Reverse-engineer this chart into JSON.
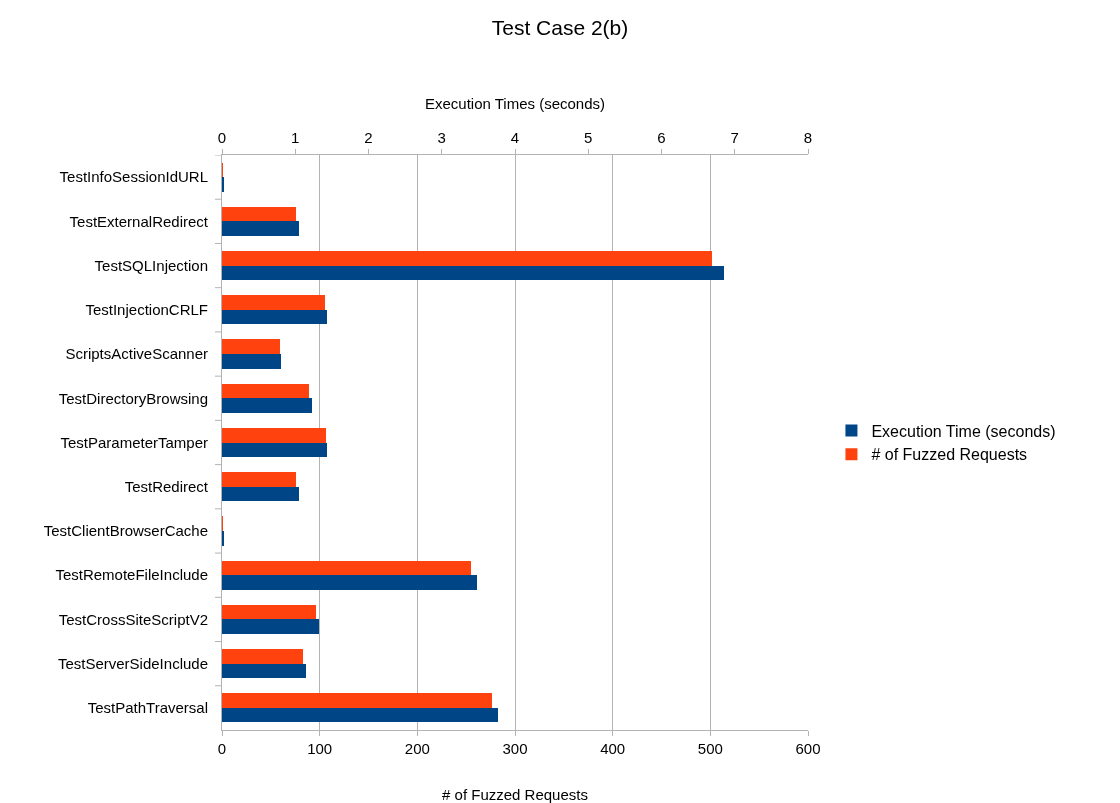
{
  "chart_data": {
    "type": "bar",
    "orientation": "horizontal",
    "title": "Test Case 2(b)",
    "xlabel": "# of Fuzzed Requests",
    "x2label": "Execution Times (seconds)",
    "categories": [
      "TestInfoSessionIdURL",
      "TestExternalRedirect",
      "TestSQLInjection",
      "TestInjectionCRLF",
      "ScriptsActiveScanner",
      "TestDirectoryBrowsing",
      "TestParameterTamper",
      "TestRedirect",
      "TestClientBrowserCache",
      "TestRemoteFileInclude",
      "TestCrossSiteScriptV2",
      "TestServerSideInclude",
      "TestPathTraversal"
    ],
    "series": [
      {
        "name": "Execution Time (seconds)",
        "color": "#004586",
        "axis": "x2",
        "values": [
          0.02,
          1.05,
          6.85,
          1.43,
          0.8,
          1.23,
          1.44,
          1.05,
          0.02,
          3.48,
          1.32,
          1.14,
          3.77
        ]
      },
      {
        "name": "# of Fuzzed Requests",
        "color": "#ff420e",
        "values": [
          1,
          76,
          502,
          105,
          59,
          89,
          106,
          76,
          1,
          255,
          96,
          83,
          276
        ]
      }
    ],
    "xlim": [
      0,
      600
    ],
    "xticks": [
      0,
      100,
      200,
      300,
      400,
      500,
      600
    ],
    "x2lim": [
      0,
      8
    ],
    "x2ticks": [
      0,
      1,
      2,
      3,
      4,
      5,
      6,
      7,
      8
    ],
    "grid": "x",
    "legend": "right"
  }
}
